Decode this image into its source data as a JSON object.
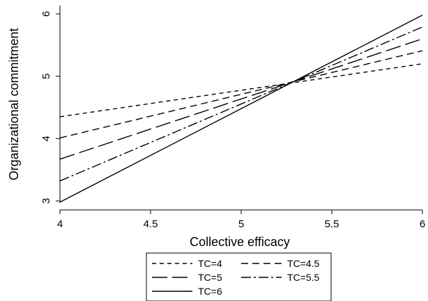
{
  "chart_data": {
    "type": "line",
    "xlabel": "Collective efficacy",
    "ylabel": "Organizational commitment",
    "xlim": [
      4,
      6
    ],
    "ylim": [
      3,
      6
    ],
    "xticks": [
      4,
      4.5,
      5,
      5.5,
      6
    ],
    "yticks": [
      3,
      4,
      5,
      6
    ],
    "x_tick_labels": [
      "4",
      "4.5",
      "5",
      "5.5",
      "6"
    ],
    "y_tick_labels": [
      "3",
      "4",
      "5",
      "6"
    ],
    "grid": false,
    "legend_position": "bottom-center",
    "x": [
      4,
      6
    ],
    "series": [
      {
        "name": "TC=4",
        "values": [
          4.35,
          5.2
        ],
        "style": "dashed-short"
      },
      {
        "name": "TC=4.5",
        "values": [
          4.01,
          5.41
        ],
        "style": "dashed-medium"
      },
      {
        "name": "TC=5",
        "values": [
          3.67,
          5.6
        ],
        "style": "dashed-long"
      },
      {
        "name": "TC=5.5",
        "values": [
          3.32,
          5.79
        ],
        "style": "dash-dot"
      },
      {
        "name": "TC=6",
        "values": [
          2.98,
          5.98
        ],
        "style": "solid"
      }
    ]
  }
}
